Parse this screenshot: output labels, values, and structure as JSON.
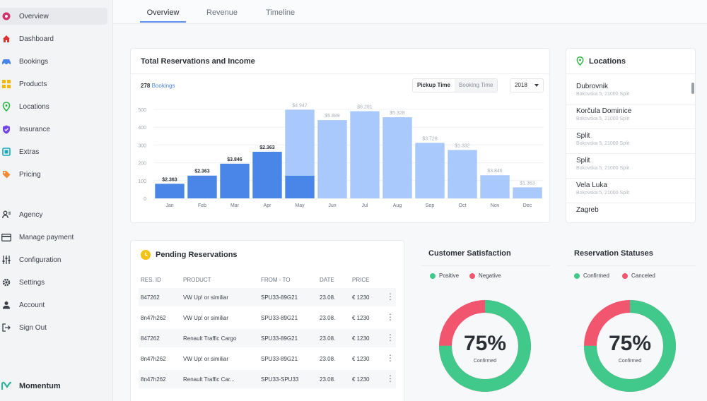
{
  "sidebar": {
    "items": [
      {
        "label": "Overview",
        "icon": "overview-icon",
        "color": "#d6336c"
      },
      {
        "label": "Dashboard",
        "icon": "home-icon",
        "color": "#e03131"
      },
      {
        "label": "Bookings",
        "icon": "car-icon",
        "color": "#4a86e8"
      },
      {
        "label": "Products",
        "icon": "grid-icon",
        "color": "#f5b700"
      },
      {
        "label": "Locations",
        "icon": "location-pin-icon",
        "color": "#2fb344"
      },
      {
        "label": "Insurance",
        "icon": "shield-icon",
        "color": "#7048e8"
      },
      {
        "label": "Extras",
        "icon": "extras-icon",
        "color": "#15aabf"
      },
      {
        "label": "Pricing",
        "icon": "tag-icon",
        "color": "#f08c38"
      },
      {
        "label": "Agency",
        "icon": "agency-icon",
        "color": "#3a3f47"
      },
      {
        "label": "Manage payment",
        "icon": "credit-card-icon",
        "color": "#3a3f47"
      },
      {
        "label": "Configuration",
        "icon": "sliders-icon",
        "color": "#3a3f47"
      },
      {
        "label": "Settings",
        "icon": "gear-icon",
        "color": "#3a3f47"
      },
      {
        "label": "Account",
        "icon": "user-icon",
        "color": "#3a3f47"
      },
      {
        "label": "Sign Out",
        "icon": "sign-out-icon",
        "color": "#3a3f47"
      }
    ],
    "brand": "Momentum"
  },
  "tabs": [
    "Overview",
    "Revenue",
    "Timeline"
  ],
  "income_card": {
    "title": "Total Reservations and Income",
    "bookings_count": "278",
    "bookings_label": "Bookings",
    "toggle_on": "Pickup Time",
    "toggle_off": "Booking Time",
    "year": "2018"
  },
  "chart_data": {
    "type": "bar",
    "categories": [
      "Jan",
      "Feb",
      "Mar",
      "Apr",
      "May",
      "Jun",
      "Jul",
      "Aug",
      "Sep",
      "Oct",
      "Nov",
      "Dec"
    ],
    "series": [
      {
        "values": [
          82,
          128,
          195,
          262,
          128,
          0,
          0,
          0,
          0,
          0,
          0,
          0
        ],
        "color": "#4a86e8"
      },
      {
        "values": [
          0,
          0,
          0,
          0,
          370,
          440,
          490,
          456,
          312,
          272,
          130,
          62
        ],
        "color": "#a9c8fb"
      }
    ],
    "data_labels": [
      "$2.363",
      "$2.363",
      "$3.846",
      "$2.363",
      "$4.947",
      "$5.889",
      "$6.281",
      "$5.328",
      "$3.728",
      "$1.332",
      "$3.846",
      "$1.363"
    ],
    "yticks": [
      0,
      100,
      200,
      300,
      400,
      500
    ],
    "ylim": [
      0,
      500
    ],
    "grid": true
  },
  "locations": {
    "title": "Locations",
    "items": [
      {
        "name": "Dubrovnik",
        "address": "Bokovska 5, 21000 Split"
      },
      {
        "name": "Korčula Dominice",
        "address": "Bokovska 5, 21000 Split"
      },
      {
        "name": "Split",
        "address": "Bokovska 5, 21000 Split"
      },
      {
        "name": "Split",
        "address": "Bokovska 5, 21000 Split"
      },
      {
        "name": "Vela Luka",
        "address": "Bokovska 5, 21000 Split"
      },
      {
        "name": "Zagreb",
        "address": ""
      }
    ]
  },
  "pending": {
    "title": "Pending Reservations",
    "columns": [
      "RES. ID",
      "PRODUCT",
      "FROM - TO",
      "DATE",
      "PRICE"
    ],
    "rows": [
      [
        "847262",
        "VW Up! or similiar",
        "SPU33-89G21",
        "23.08.",
        "€ 1230"
      ],
      [
        "8n47h262",
        "VW Up! or similiar",
        "SPU33-89G21",
        "23.08.",
        "€ 1230"
      ],
      [
        "847262",
        "Renault Traffic Cargo",
        "SPU33-89G21",
        "23.08.",
        "€ 1230"
      ],
      [
        "8n47h262",
        "VW Up! or similiar",
        "SPU33-89G21",
        "23.08.",
        "€ 1230"
      ],
      [
        "8n47h262",
        "Renault Traffic Car...",
        "SPU33-SPU33",
        "23.08.",
        "€ 1230"
      ]
    ]
  },
  "satisfaction": {
    "title": "Customer Satisfaction",
    "legend": [
      {
        "label": "Positive",
        "color": "#40c98a"
      },
      {
        "label": "Negative",
        "color": "#f2566e"
      }
    ],
    "value": 75,
    "percent_text": "75%",
    "sub": "Confirmed"
  },
  "statuses": {
    "title": "Reservation Statuses",
    "legend": [
      {
        "label": "Confirmed",
        "color": "#40c98a"
      },
      {
        "label": "Canceled",
        "color": "#f2566e"
      }
    ],
    "value": 75,
    "percent_text": "75%",
    "sub": "Confirmed"
  }
}
